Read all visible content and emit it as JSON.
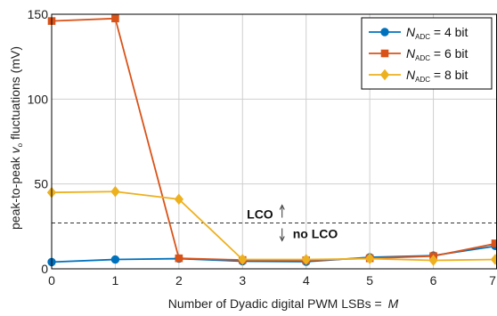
{
  "chart_data": {
    "type": "line",
    "xlabel_text": "Number of Dyadic digital PWM LSBs = ",
    "xlabel_var": "M",
    "ylabel_pre": "peak-to-peak ",
    "ylabel_var": "v",
    "ylabel_sub": "o",
    "ylabel_post": " fluctuations (mV)",
    "xlim": [
      0,
      7
    ],
    "ylim": [
      0,
      150
    ],
    "xticks": [
      "0",
      "1",
      "2",
      "3",
      "4",
      "5",
      "6",
      "7"
    ],
    "yticks": [
      "0",
      "50",
      "100",
      "150"
    ],
    "xtick_values": [
      0,
      1,
      2,
      3,
      4,
      5,
      6,
      7
    ],
    "ytick_values": [
      0,
      50,
      100,
      150
    ],
    "grid": true,
    "legend_position": "top-right",
    "x": [
      0,
      1,
      2,
      3,
      4,
      5,
      6,
      7
    ],
    "series": [
      {
        "name_var": "N",
        "name_sub": "ADC",
        "name_post": " = 4 bit",
        "color": "#0072BD",
        "marker": "circle",
        "values": [
          4,
          5.5,
          6,
          4.5,
          4.2,
          6.8,
          7.8,
          13.5
        ]
      },
      {
        "name_var": "N",
        "name_sub": "ADC",
        "name_post": " = 6 bit",
        "color": "#D95319",
        "marker": "square",
        "values": [
          146,
          147.5,
          6.2,
          5.2,
          5.0,
          6.2,
          7.5,
          15.0
        ]
      },
      {
        "name_var": "N",
        "name_sub": "ADC",
        "name_post": " = 8 bit",
        "color": "#EDB120",
        "marker": "diamond",
        "values": [
          45,
          45.5,
          41,
          5.5,
          5.5,
          6.0,
          5.0,
          5.5
        ]
      }
    ],
    "threshold": {
      "y": 27,
      "above_label": "LCO",
      "below_label": "no LCO",
      "label_x": 4
    }
  }
}
